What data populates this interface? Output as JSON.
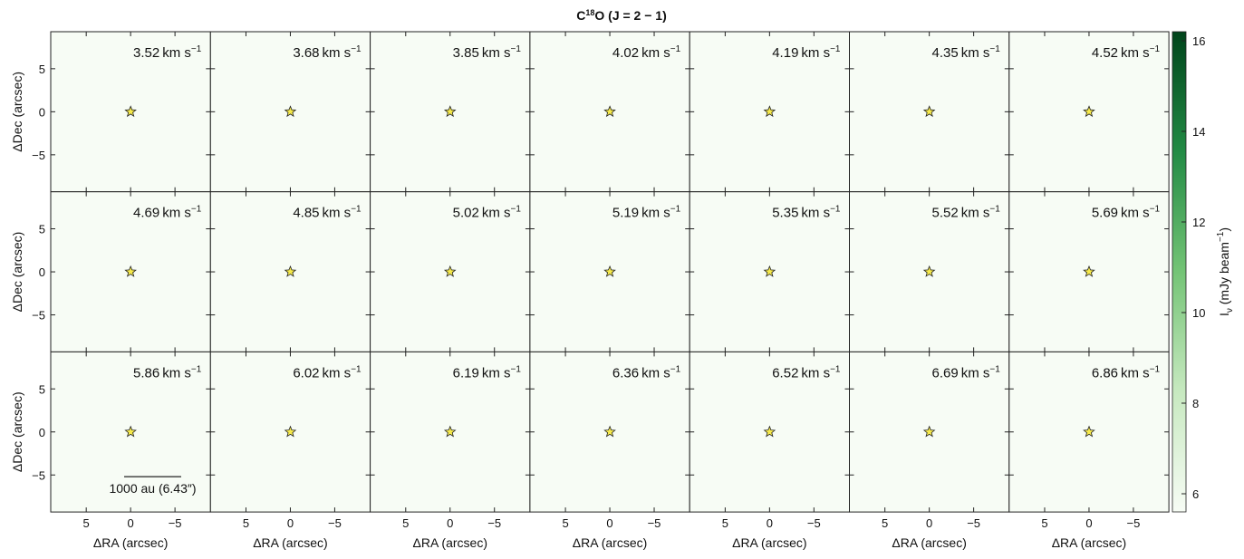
{
  "chart_data": {
    "type": "channel_map",
    "title_parts": [
      "C",
      "18",
      "O (J = 2 − 1)"
    ],
    "velocities": [
      3.52,
      3.68,
      3.85,
      4.02,
      4.19,
      4.35,
      4.52,
      4.69,
      4.85,
      5.02,
      5.19,
      5.35,
      5.52,
      5.69,
      5.86,
      6.02,
      6.19,
      6.36,
      6.52,
      6.69,
      6.86
    ],
    "velocity_unit": [
      "km s",
      "−1"
    ],
    "xlabel": "ΔRA (arcsec)",
    "ylabel": "ΔDec (arcsec)",
    "xlim": [
      9,
      -9
    ],
    "ylim": [
      -9.3,
      9.3
    ],
    "xticks": [
      5,
      0,
      {
        "value": -5,
        "label": "−5"
      }
    ],
    "yticks": [
      {
        "value": -5,
        "label": "−5"
      },
      0,
      5
    ],
    "source": {
      "x": 0,
      "y": 0
    },
    "scale_bar": {
      "length": 6.43,
      "label": "1000 au (6.43″)"
    },
    "colorbar": {
      "lim": [
        5.6,
        16.2
      ],
      "ticks": [
        6,
        8,
        10,
        12,
        14,
        16
      ],
      "colors": [
        "#f7fcf5",
        "#c7e9c0",
        "#74c476",
        "#238b45",
        "#00441b"
      ],
      "label_parts": [
        "I",
        "ν",
        " (mJy beam",
        "−1",
        ")"
      ]
    }
  }
}
